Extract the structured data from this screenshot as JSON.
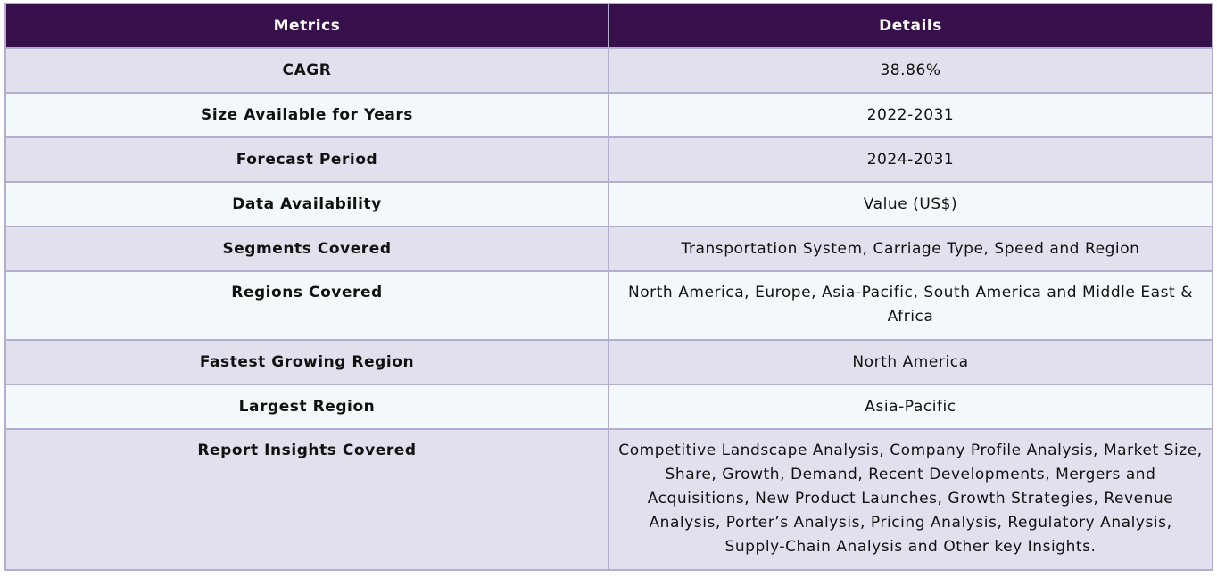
{
  "table": {
    "headers": {
      "metrics": "Metrics",
      "details": "Details"
    },
    "rows": [
      {
        "metric": "CAGR",
        "detail": "38.86%"
      },
      {
        "metric": "Size Available for Years",
        "detail": "2022-2031"
      },
      {
        "metric": "Forecast Period",
        "detail": "2024-2031"
      },
      {
        "metric": "Data Availability",
        "detail": "Value (US$)"
      },
      {
        "metric": "Segments Covered",
        "detail": "Transportation System, Carriage Type, Speed and Region"
      },
      {
        "metric": "Regions Covered",
        "detail": "North America, Europe, Asia-Pacific, South America and Middle East & Africa"
      },
      {
        "metric": "Fastest Growing Region",
        "detail": "North America"
      },
      {
        "metric": "Largest Region",
        "detail": "Asia-Pacific"
      },
      {
        "metric": "Report Insights Covered",
        "detail": "Competitive Landscape Analysis, Company Profile Analysis, Market Size, Share, Growth, Demand, Recent Developments, Mergers and Acquisitions, New Product Launches, Growth Strategies, Revenue Analysis, Porter’s Analysis, Pricing Analysis, Regulatory Analysis, Supply-Chain Analysis and Other key Insights."
      }
    ]
  },
  "colors": {
    "header_bg": "#37104b",
    "row_odd_bg": "#e2e0ec",
    "row_even_bg": "#f3f9fb",
    "border": "#b3aed0"
  }
}
